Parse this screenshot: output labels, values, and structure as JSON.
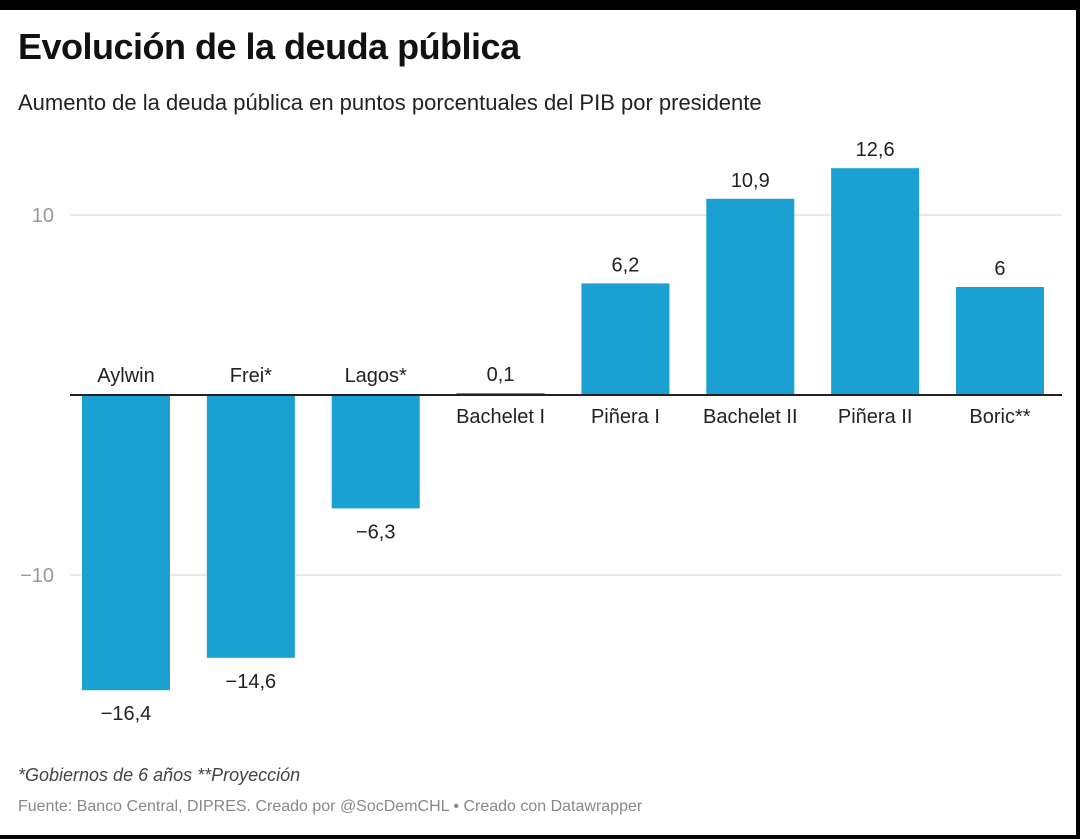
{
  "title": "Evolución de la deuda pública",
  "subtitle": "Aumento de la deuda pública en puntos porcentuales del PIB por presidente",
  "note": "*Gobiernos de 6 años **Proyección",
  "source": "Fuente: Banco Central, DIPRES. Creado por @SocDemCHL • Creado con Datawrapper",
  "colors": {
    "bar": "#1aa0d2",
    "grid": "#e2e2e2",
    "axis": "#222222",
    "tick": "#999999"
  },
  "chart_data": {
    "type": "bar",
    "categories": [
      "Aylwin",
      "Frei*",
      "Lagos*",
      "Bachelet I",
      "Piñera I",
      "Bachelet II",
      "Piñera II",
      "Boric**"
    ],
    "values": [
      -16.4,
      -14.6,
      -6.3,
      0.1,
      6.2,
      10.9,
      12.6,
      6
    ],
    "value_labels": [
      "−16,4",
      "−14,6",
      "−6,3",
      "0,1",
      "6,2",
      "10,9",
      "12,6",
      "6"
    ],
    "yticks": [
      10,
      -10
    ],
    "ytick_labels": [
      "10",
      "−10"
    ],
    "ylim": [
      -18,
      14
    ],
    "grid": true,
    "title": "Evolución de la deuda pública",
    "xlabel": "",
    "ylabel": ""
  }
}
